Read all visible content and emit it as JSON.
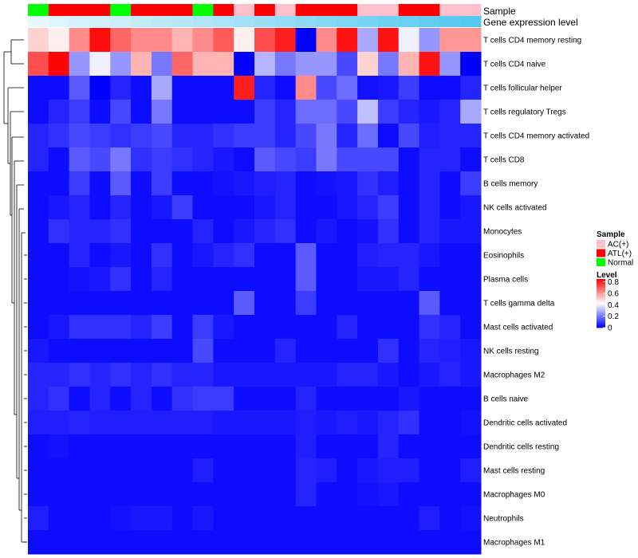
{
  "chart_data": {
    "type": "heatmap",
    "title": "",
    "annotation_rows": [
      {
        "name": "Sample",
        "label": "Sample"
      },
      {
        "name": "Gene expression level",
        "label": "Gene expression level"
      }
    ],
    "sample_groups": [
      "N",
      "A",
      "A",
      "A",
      "N",
      "A",
      "A",
      "A",
      "N",
      "A",
      "C",
      "A",
      "C",
      "A",
      "A",
      "A",
      "C",
      "C",
      "A",
      "A",
      "C",
      "C"
    ],
    "sample_legend": {
      "title": "Sample",
      "entries": [
        {
          "key": "C",
          "label": "AC(+)",
          "color": "#FFC0CB"
        },
        {
          "key": "A",
          "label": "ATL(+)",
          "color": "#FF0000"
        },
        {
          "key": "N",
          "label": "Normal",
          "color": "#00FF00"
        }
      ]
    },
    "expression_gradient": {
      "start": "#E6F7FF",
      "end": "#55C8F0"
    },
    "level_legend": {
      "title": "Level",
      "ticks": [
        "0.8",
        "0.6",
        "0.4",
        "0.2",
        "0"
      ],
      "tick_values": [
        0.8,
        0.6,
        0.4,
        0.2,
        0.0
      ],
      "range": [
        0,
        0.85
      ],
      "colors": [
        "#0000FF",
        "#FFFFFF",
        "#FF0000"
      ]
    },
    "rows": [
      "T cells CD4 memory resting",
      "T cells CD4 naive",
      "T cells follicular helper",
      "T cells regulatory  Tregs",
      "T cells CD4 memory activated",
      "T cells CD8",
      "B cells memory",
      "NK cells activated",
      "Monocytes",
      "Eosinophils",
      "Plasma cells",
      "T cells gamma delta",
      "Mast cells activated",
      "NK cells resting",
      "Macrophages M2",
      "B cells naive",
      "Dendritic cells activated",
      "Dendritic cells resting",
      "Mast cells resting",
      "Macrophages M0",
      "Neutrophils",
      "Macrophages M1"
    ],
    "values": [
      [
        0.5,
        0.45,
        0.62,
        0.83,
        0.68,
        0.62,
        0.62,
        0.55,
        0.62,
        0.7,
        0.45,
        0.72,
        0.8,
        0.0,
        0.62,
        0.82,
        0.28,
        0.82,
        0.4,
        0.25,
        0.6,
        0.6
      ],
      [
        0.72,
        0.84,
        0.25,
        0.4,
        0.25,
        0.55,
        0.2,
        0.68,
        0.55,
        0.55,
        0.0,
        0.3,
        0.2,
        0.25,
        0.25,
        0.12,
        0.5,
        0.2,
        0.55,
        0.82,
        0.25,
        0.0
      ],
      [
        0.02,
        0.02,
        0.15,
        0.0,
        0.06,
        0.02,
        0.28,
        0.02,
        0.02,
        0.02,
        0.8,
        0.06,
        0.02,
        0.62,
        0.12,
        0.18,
        0.03,
        0.04,
        0.1,
        0.02,
        0.02,
        0.06
      ],
      [
        0.02,
        0.06,
        0.1,
        0.02,
        0.12,
        0.02,
        0.2,
        0.02,
        0.02,
        0.02,
        0.02,
        0.1,
        0.06,
        0.18,
        0.18,
        0.12,
        0.32,
        0.1,
        0.06,
        0.04,
        0.06,
        0.28
      ],
      [
        0.06,
        0.08,
        0.12,
        0.1,
        0.08,
        0.1,
        0.12,
        0.06,
        0.06,
        0.08,
        0.1,
        0.1,
        0.06,
        0.12,
        0.2,
        0.06,
        0.18,
        0.02,
        0.12,
        0.05,
        0.06,
        0.06
      ],
      [
        0.06,
        0.02,
        0.15,
        0.12,
        0.2,
        0.08,
        0.1,
        0.08,
        0.06,
        0.04,
        0.02,
        0.15,
        0.12,
        0.1,
        0.2,
        0.12,
        0.12,
        0.12,
        0.02,
        0.06,
        0.06,
        0.02
      ],
      [
        0.02,
        0.02,
        0.1,
        0.02,
        0.15,
        0.02,
        0.1,
        0.02,
        0.02,
        0.03,
        0.04,
        0.05,
        0.06,
        0.02,
        0.03,
        0.04,
        0.08,
        0.05,
        0.02,
        0.06,
        0.02,
        0.1
      ],
      [
        0.02,
        0.04,
        0.06,
        0.02,
        0.06,
        0.02,
        0.04,
        0.1,
        0.02,
        0.02,
        0.02,
        0.04,
        0.06,
        0.02,
        0.02,
        0.04,
        0.06,
        0.1,
        0.02,
        0.06,
        0.02,
        0.04
      ],
      [
        0.02,
        0.08,
        0.06,
        0.06,
        0.08,
        0.02,
        0.02,
        0.02,
        0.06,
        0.02,
        0.04,
        0.06,
        0.08,
        0.02,
        0.04,
        0.02,
        0.03,
        0.08,
        0.02,
        0.06,
        0.04,
        0.04
      ],
      [
        0.02,
        0.02,
        0.06,
        0.02,
        0.04,
        0.02,
        0.08,
        0.02,
        0.04,
        0.06,
        0.08,
        0.02,
        0.02,
        0.15,
        0.02,
        0.02,
        0.05,
        0.06,
        0.06,
        0.04,
        0.02,
        0.02
      ],
      [
        0.02,
        0.02,
        0.03,
        0.04,
        0.08,
        0.02,
        0.06,
        0.02,
        0.02,
        0.02,
        0.02,
        0.02,
        0.02,
        0.15,
        0.02,
        0.02,
        0.04,
        0.04,
        0.06,
        0.02,
        0.02,
        0.02
      ],
      [
        0.02,
        0.02,
        0.02,
        0.02,
        0.02,
        0.02,
        0.02,
        0.02,
        0.02,
        0.02,
        0.15,
        0.02,
        0.02,
        0.1,
        0.02,
        0.02,
        0.02,
        0.02,
        0.02,
        0.15,
        0.02,
        0.02
      ],
      [
        0.02,
        0.04,
        0.08,
        0.08,
        0.08,
        0.06,
        0.1,
        0.02,
        0.1,
        0.04,
        0.02,
        0.02,
        0.02,
        0.02,
        0.02,
        0.06,
        0.02,
        0.02,
        0.02,
        0.08,
        0.06,
        0.02
      ],
      [
        0.04,
        0.02,
        0.02,
        0.02,
        0.02,
        0.02,
        0.02,
        0.02,
        0.12,
        0.02,
        0.02,
        0.02,
        0.06,
        0.02,
        0.02,
        0.02,
        0.02,
        0.08,
        0.02,
        0.06,
        0.05,
        0.04
      ],
      [
        0.06,
        0.06,
        0.08,
        0.06,
        0.08,
        0.06,
        0.08,
        0.06,
        0.06,
        0.04,
        0.04,
        0.04,
        0.04,
        0.04,
        0.04,
        0.06,
        0.06,
        0.04,
        0.02,
        0.04,
        0.06,
        0.04
      ],
      [
        0.06,
        0.08,
        0.02,
        0.06,
        0.02,
        0.06,
        0.02,
        0.08,
        0.1,
        0.1,
        0.02,
        0.02,
        0.02,
        0.06,
        0.02,
        0.02,
        0.02,
        0.02,
        0.04,
        0.02,
        0.02,
        0.02
      ],
      [
        0.05,
        0.05,
        0.06,
        0.05,
        0.05,
        0.05,
        0.05,
        0.05,
        0.05,
        0.04,
        0.04,
        0.04,
        0.04,
        0.05,
        0.04,
        0.05,
        0.04,
        0.06,
        0.08,
        0.02,
        0.02,
        0.03
      ],
      [
        0.02,
        0.03,
        0.02,
        0.02,
        0.02,
        0.02,
        0.02,
        0.02,
        0.02,
        0.02,
        0.02,
        0.02,
        0.02,
        0.05,
        0.02,
        0.02,
        0.02,
        0.06,
        0.02,
        0.02,
        0.02,
        0.02
      ],
      [
        0.02,
        0.02,
        0.02,
        0.02,
        0.02,
        0.02,
        0.02,
        0.02,
        0.05,
        0.02,
        0.02,
        0.02,
        0.02,
        0.06,
        0.05,
        0.02,
        0.04,
        0.05,
        0.05,
        0.02,
        0.02,
        0.05
      ],
      [
        0.02,
        0.02,
        0.02,
        0.02,
        0.02,
        0.02,
        0.02,
        0.02,
        0.02,
        0.02,
        0.02,
        0.02,
        0.02,
        0.06,
        0.02,
        0.02,
        0.03,
        0.04,
        0.02,
        0.02,
        0.02,
        0.02
      ],
      [
        0.05,
        0.02,
        0.02,
        0.02,
        0.03,
        0.04,
        0.04,
        0.02,
        0.04,
        0.02,
        0.02,
        0.02,
        0.02,
        0.02,
        0.02,
        0.02,
        0.02,
        0.02,
        0.02,
        0.05,
        0.02,
        0.03
      ],
      [
        0.02,
        0.02,
        0.02,
        0.02,
        0.02,
        0.02,
        0.02,
        0.02,
        0.02,
        0.02,
        0.02,
        0.02,
        0.02,
        0.02,
        0.02,
        0.02,
        0.02,
        0.02,
        0.02,
        0.02,
        0.02,
        0.02
      ]
    ]
  }
}
